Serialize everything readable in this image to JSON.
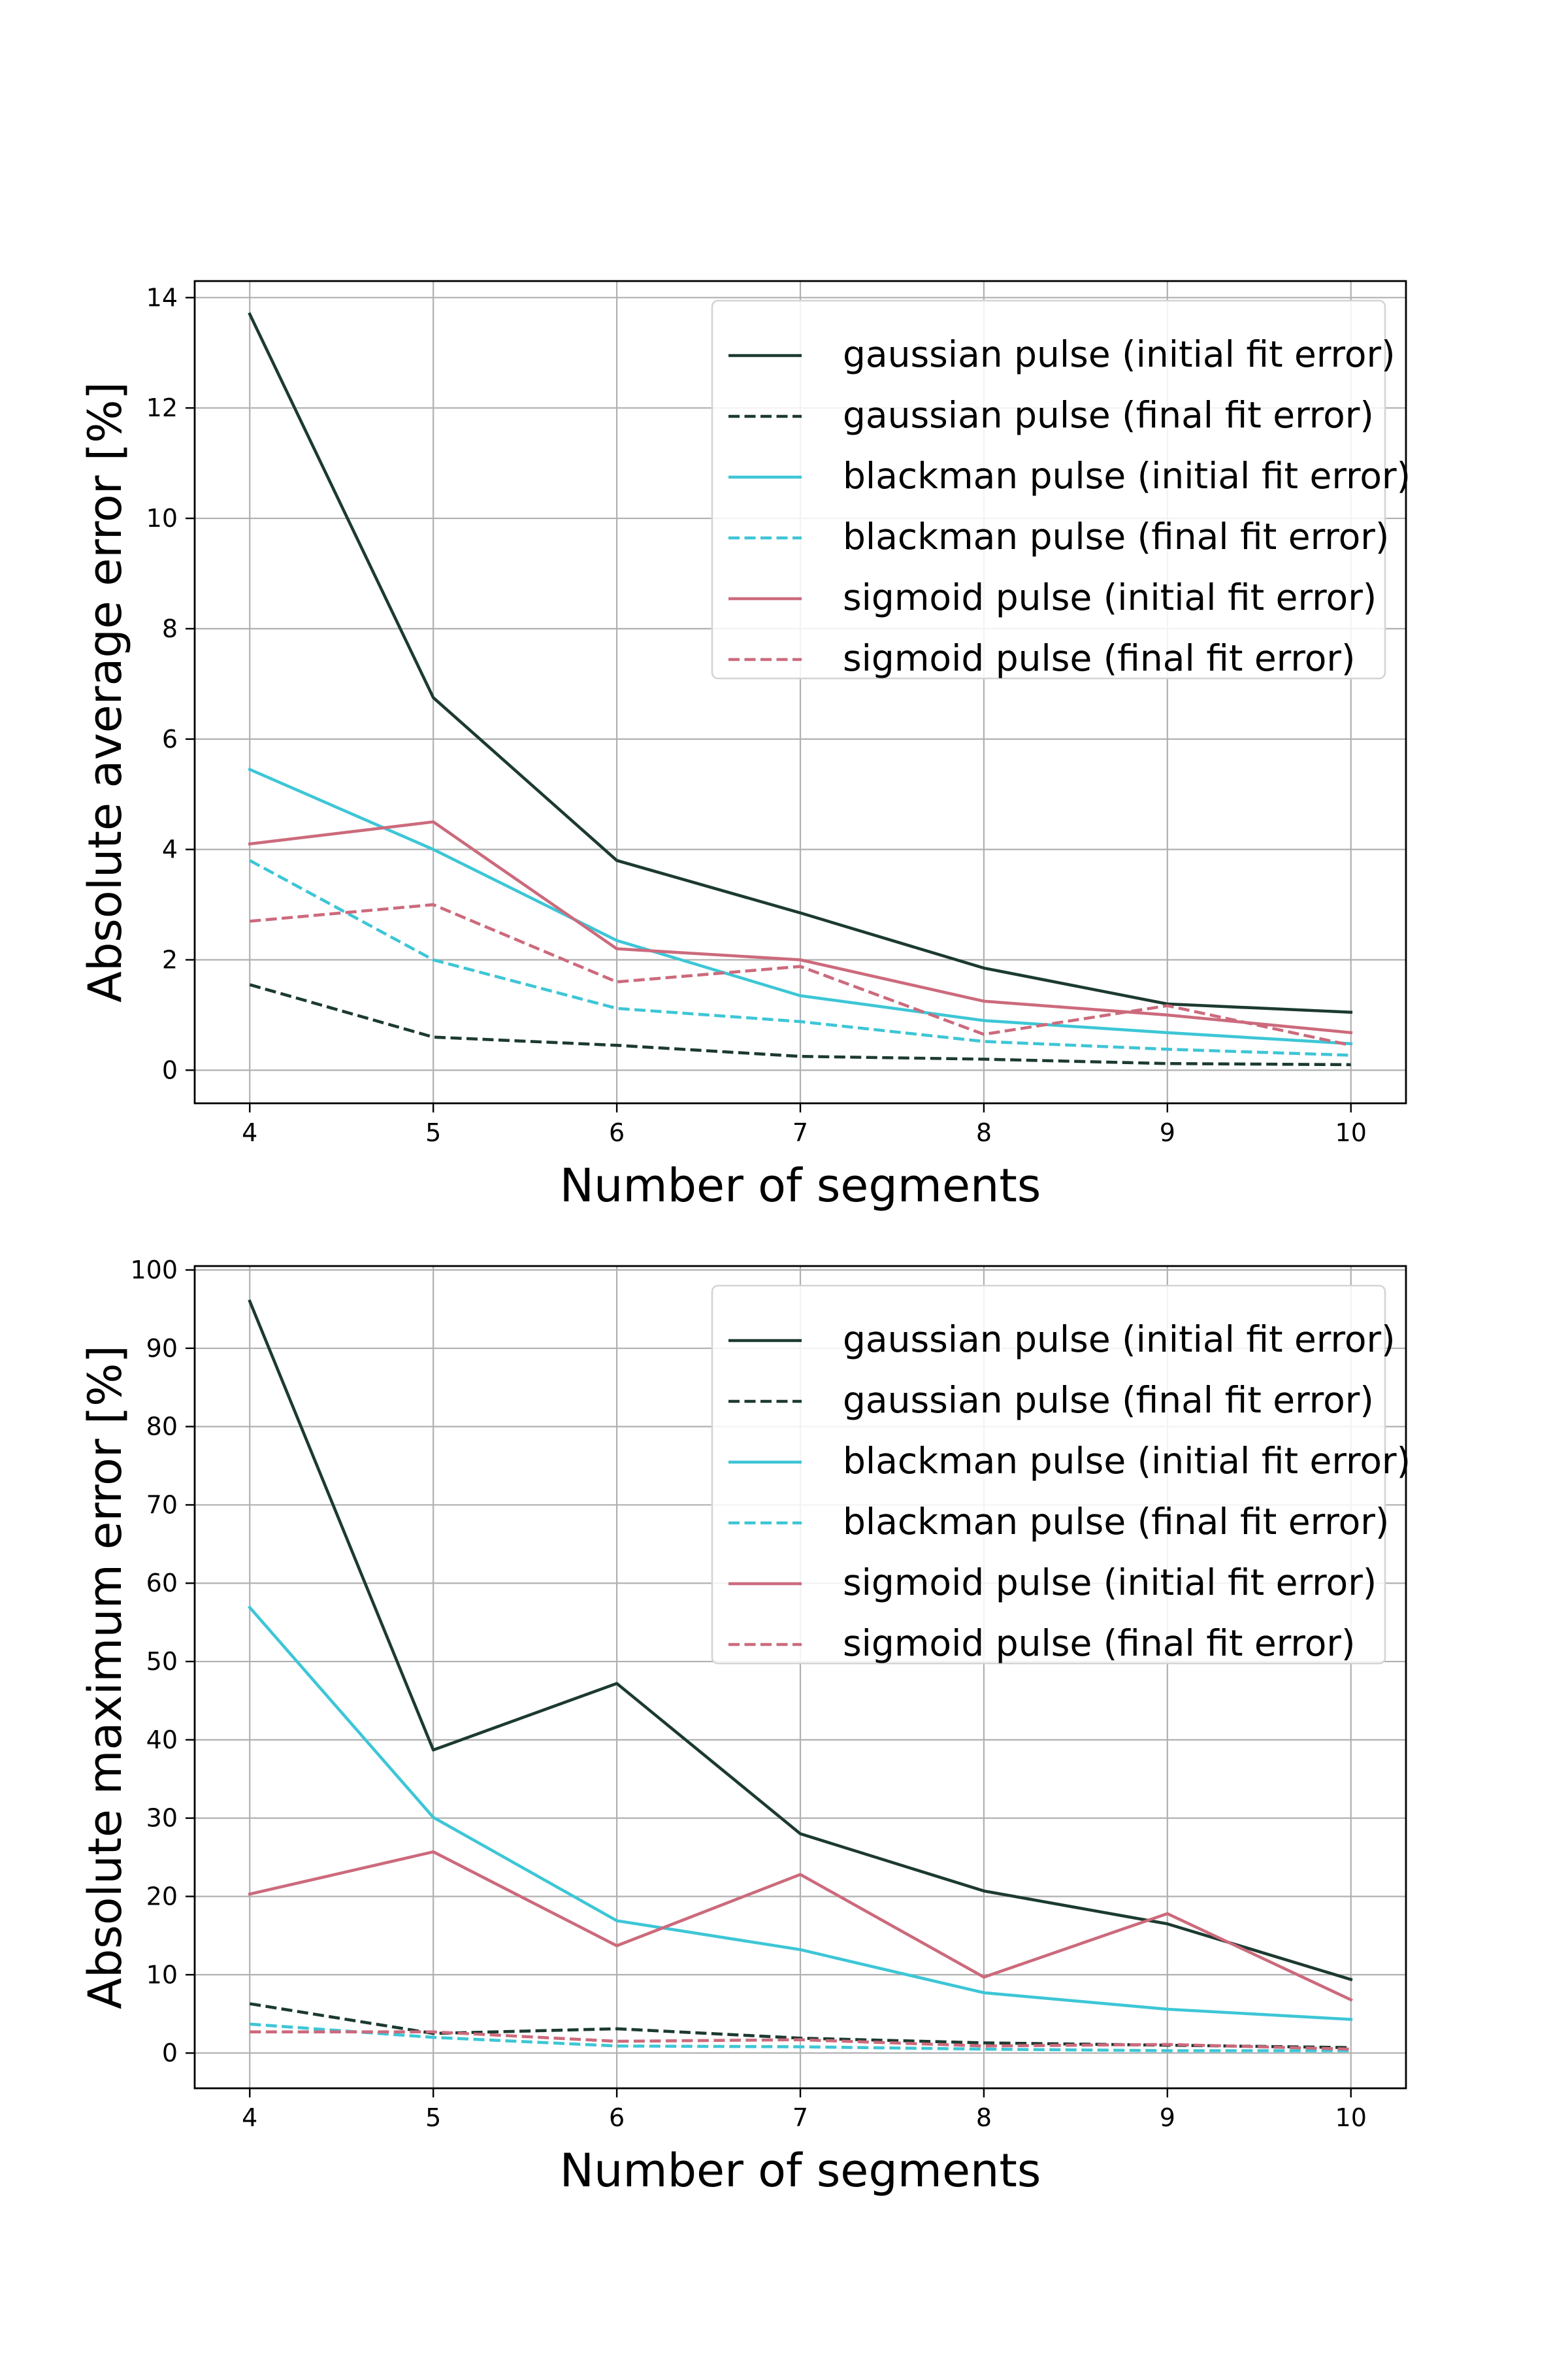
{
  "figure": {
    "background": "#ffffff",
    "grid_color": "#b0b0b0",
    "frame_color": "#000000"
  },
  "chart_data": [
    {
      "type": "line",
      "title": "",
      "xlabel": "Number of segments",
      "ylabel": "Absolute average error [%]",
      "x": [
        4,
        5,
        6,
        7,
        8,
        9,
        10
      ],
      "xlim": [
        3.7,
        10.3
      ],
      "ylim": [
        -0.6,
        14.3
      ],
      "xticks": [
        4,
        5,
        6,
        7,
        8,
        9,
        10
      ],
      "xtick_labels": [
        "4",
        "5",
        "6",
        "7",
        "8",
        "9",
        "10"
      ],
      "yticks": [
        0,
        2,
        4,
        6,
        8,
        10,
        12,
        14
      ],
      "ytick_labels": [
        "0",
        "2",
        "4",
        "6",
        "8",
        "10",
        "12",
        "14"
      ],
      "grid": true,
      "legend_position": "top-right",
      "series": [
        {
          "name": "gaussian pulse (initial fit error)",
          "color": "#1c3a30",
          "dashed": false,
          "values": [
            13.7,
            6.75,
            3.8,
            2.85,
            1.85,
            1.2,
            1.05
          ]
        },
        {
          "name": "gaussian pulse (final fit error)",
          "color": "#1c3a30",
          "dashed": true,
          "values": [
            1.55,
            0.6,
            0.45,
            0.25,
            0.2,
            0.12,
            0.1
          ]
        },
        {
          "name": "blackman pulse (initial fit error)",
          "color": "#3dc6d6",
          "dashed": false,
          "values": [
            5.45,
            4.0,
            2.35,
            1.35,
            0.9,
            0.68,
            0.48
          ]
        },
        {
          "name": "blackman pulse (final fit error)",
          "color": "#3dc6d6",
          "dashed": true,
          "values": [
            3.8,
            2.0,
            1.12,
            0.88,
            0.52,
            0.38,
            0.27
          ]
        },
        {
          "name": "sigmoid pulse (initial fit error)",
          "color": "#cc6a7c",
          "dashed": false,
          "values": [
            4.1,
            4.5,
            2.2,
            2.0,
            1.25,
            1.0,
            0.68
          ]
        },
        {
          "name": "sigmoid pulse (final fit error)",
          "color": "#cc6a7c",
          "dashed": true,
          "values": [
            2.7,
            3.0,
            1.6,
            1.88,
            0.65,
            1.17,
            0.45
          ]
        }
      ]
    },
    {
      "type": "line",
      "title": "",
      "xlabel": "Number of segments",
      "ylabel": "Absolute maximum error [%]",
      "x": [
        4,
        5,
        6,
        7,
        8,
        9,
        10
      ],
      "xlim": [
        3.7,
        10.3
      ],
      "ylim": [
        -4.5,
        100.5
      ],
      "xticks": [
        4,
        5,
        6,
        7,
        8,
        9,
        10
      ],
      "xtick_labels": [
        "4",
        "5",
        "6",
        "7",
        "8",
        "9",
        "10"
      ],
      "yticks": [
        0,
        10,
        20,
        30,
        40,
        50,
        60,
        70,
        80,
        90,
        100
      ],
      "ytick_labels": [
        "0",
        "10",
        "20",
        "30",
        "40",
        "50",
        "60",
        "70",
        "80",
        "90",
        "100"
      ],
      "grid": true,
      "legend_position": "top-right",
      "series": [
        {
          "name": "gaussian pulse (initial fit error)",
          "color": "#1c3a30",
          "dashed": false,
          "values": [
            96.0,
            38.7,
            47.2,
            28.0,
            20.7,
            16.5,
            9.4
          ]
        },
        {
          "name": "gaussian pulse (final fit error)",
          "color": "#1c3a30",
          "dashed": true,
          "values": [
            6.3,
            2.5,
            3.1,
            1.9,
            1.3,
            1.0,
            0.7
          ]
        },
        {
          "name": "blackman pulse (initial fit error)",
          "color": "#3dc6d6",
          "dashed": false,
          "values": [
            56.9,
            30.1,
            16.9,
            13.2,
            7.7,
            5.6,
            4.3
          ]
        },
        {
          "name": "blackman pulse (final fit error)",
          "color": "#3dc6d6",
          "dashed": true,
          "values": [
            3.7,
            2.0,
            0.9,
            0.8,
            0.5,
            0.3,
            0.3
          ]
        },
        {
          "name": "sigmoid pulse (initial fit error)",
          "color": "#cc6a7c",
          "dashed": false,
          "values": [
            20.3,
            25.7,
            13.7,
            22.8,
            9.7,
            17.8,
            6.8
          ]
        },
        {
          "name": "sigmoid pulse (final fit error)",
          "color": "#cc6a7c",
          "dashed": true,
          "values": [
            2.7,
            2.7,
            1.5,
            1.7,
            0.9,
            1.1,
            0.5
          ]
        }
      ]
    }
  ]
}
